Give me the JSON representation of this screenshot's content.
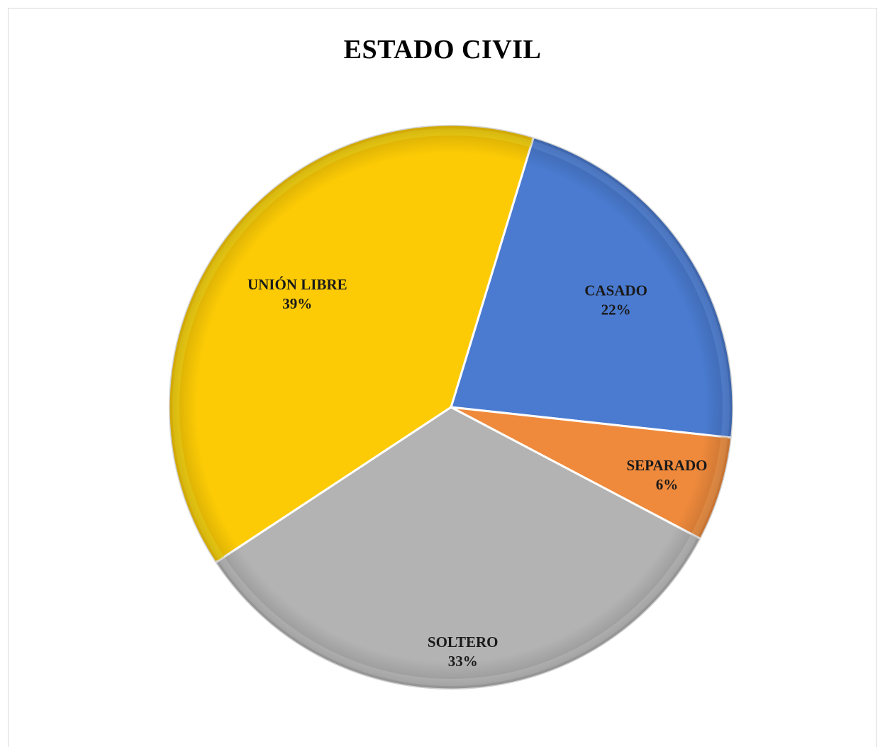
{
  "chart_data": {
    "type": "pie",
    "title": "ESTADO CIVIL",
    "slices": [
      {
        "label": "CASADO",
        "value": 22,
        "value_label": "22%",
        "color": "#4a7bd0"
      },
      {
        "label": "SEPARADO",
        "value": 6,
        "value_label": "6%",
        "color": "#ef8a3c"
      },
      {
        "label": "SOLTERO",
        "value": 33,
        "value_label": "33%",
        "color": "#b3b3b3"
      },
      {
        "label": "UNIÓN LIBRE",
        "value": 39,
        "value_label": "39%",
        "color": "#fccb05"
      }
    ],
    "legend": "none",
    "data_labels": "inside"
  }
}
